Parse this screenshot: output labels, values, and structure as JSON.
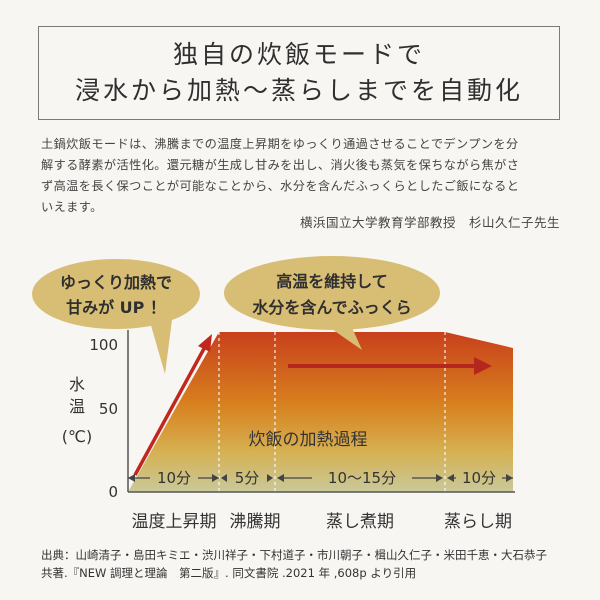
{
  "title": {
    "line1": "独自の炊飯モードで",
    "line2": "浸水から加熱～蒸らしまでを自動化"
  },
  "body": {
    "line1": "土鍋炊飯モードは、沸騰までの温度上昇期をゆっくり通過させることでデンプンを分",
    "line2": "解する酵素が活性化。還元糖が生成し甘みを出し、消火後も蒸気を保ちながら焦がさ",
    "line3": "ず高温を長く保つことが可能なことから、水分を含んだふっくらとしたご飯になると",
    "line4": "いえます。"
  },
  "attribution": "横浜国立大学教育学部教授　杉山久仁子先生",
  "diagram": {
    "bubble_left": {
      "line1": "ゆっくり加熱で",
      "line2": "甘みが UP ！"
    },
    "bubble_right": {
      "line1": "高温を維持して",
      "line2": "水分を含んでふっくら"
    },
    "y_axis": {
      "label1": "水",
      "label2": "温",
      "label3": "(℃)",
      "ticks": [
        "100",
        "50",
        "0"
      ]
    },
    "process_label": "炊飯の加熱過程",
    "segments": [
      "10分",
      "5分",
      "10～15分",
      "10分"
    ],
    "phases": [
      "温度上昇期",
      "沸騰期",
      "蒸し煮期",
      "蒸らし期"
    ],
    "colors": {
      "bubble": "#d8bd74",
      "arrow": "#c0281f",
      "heat_top": "#c8401c",
      "heat_bottom": "#c9c99a"
    }
  },
  "source": {
    "line1": "出典：山崎清子・島田キミエ・渋川祥子・下村道子・市川朝子・楫山久仁子・米田千恵・大石恭子",
    "line2": "共著.『NEW 調理と理論　第二版』. 同文書院 .2021 年 ,608p より引用"
  }
}
